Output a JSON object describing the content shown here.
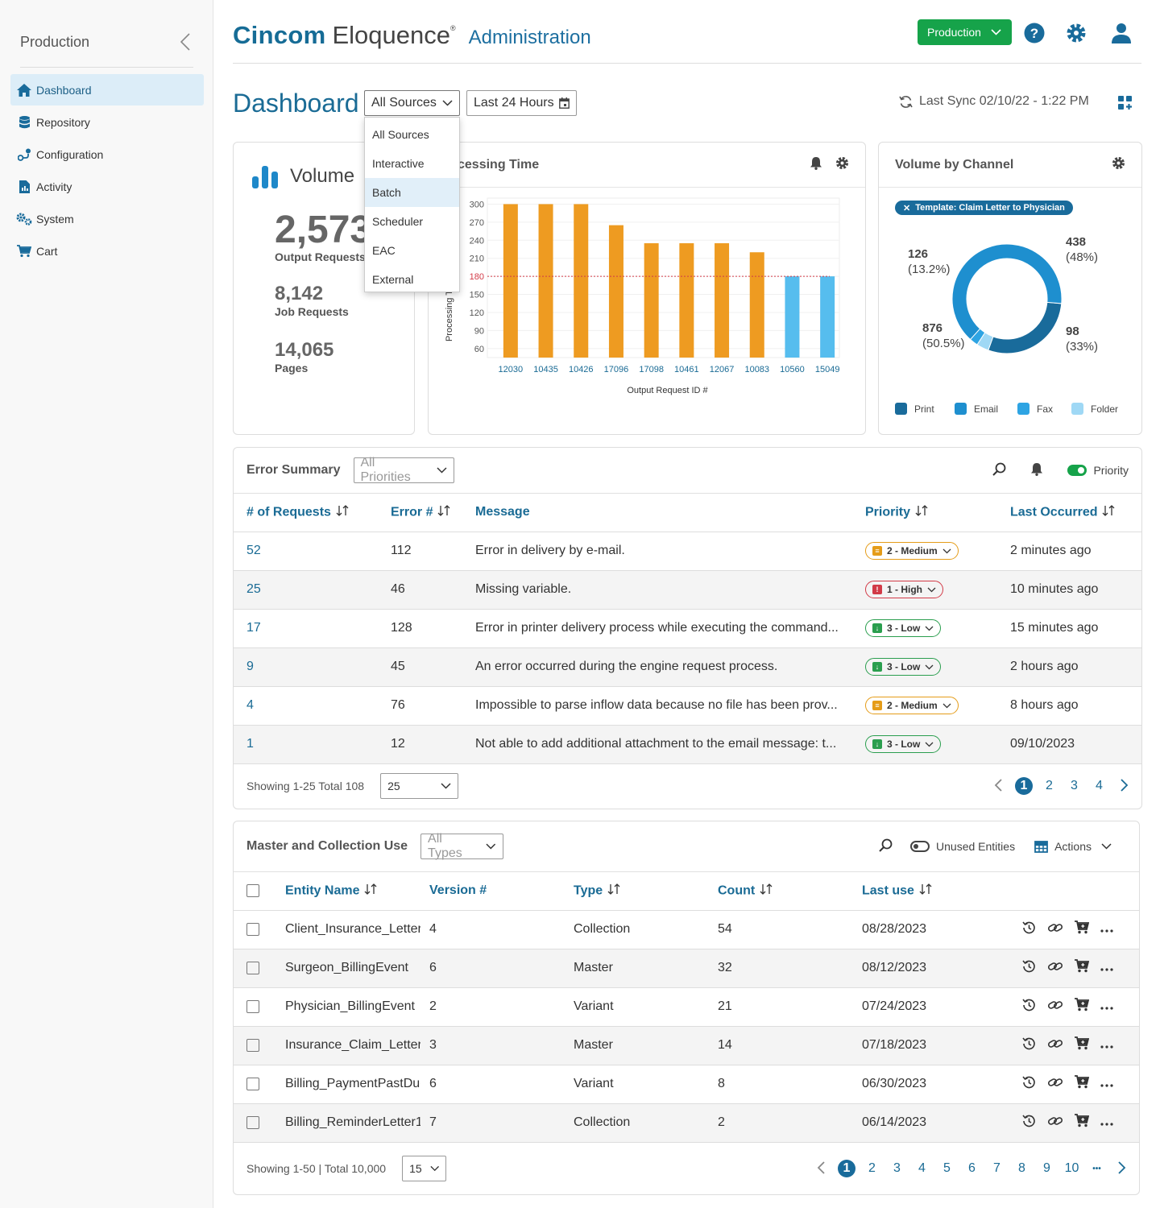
{
  "sidebar": {
    "title": "Production",
    "items": [
      {
        "label": "Dashboard",
        "icon": "home-icon",
        "active": true
      },
      {
        "label": "Repository",
        "icon": "database-icon"
      },
      {
        "label": "Configuration",
        "icon": "workflow-icon"
      },
      {
        "label": "Activity",
        "icon": "document-chart-icon"
      },
      {
        "label": "System",
        "icon": "gears-icon"
      },
      {
        "label": "Cart",
        "icon": "cart-icon"
      }
    ]
  },
  "header": {
    "brand_primary": "Cincom",
    "brand_secondary": "Eloquence",
    "brand_mark": "®",
    "section": "Administration",
    "environment": "Production"
  },
  "dashboard": {
    "title": "Dashboard",
    "source_filter": "All Sources",
    "time_filter": "Last 24 Hours",
    "sync_text": "Last Sync 02/10/22 - 1:22 PM",
    "source_options": [
      "All Sources",
      "Interactive",
      "Batch",
      "Scheduler",
      "EAC",
      "External"
    ],
    "selected_option": "Batch"
  },
  "volume": {
    "title": "Volume",
    "stats": [
      {
        "value": "2,573",
        "label": "Output Requests"
      },
      {
        "value": "8,142",
        "label": "Job Requests"
      },
      {
        "value": "14,065",
        "label": "Pages"
      }
    ]
  },
  "processing": {
    "title_visible": "cessing Time",
    "chart_data": {
      "type": "bar",
      "title": "Processing Time",
      "xlabel": "Output Request ID #",
      "ylabel": "Processing Tin",
      "categories": [
        "12030",
        "10435",
        "10426",
        "17096",
        "17098",
        "10461",
        "12067",
        "10083",
        "10560",
        "15049"
      ],
      "values": [
        300,
        300,
        300,
        265,
        235,
        235,
        235,
        220,
        180,
        180
      ],
      "yticks": [
        60,
        90,
        120,
        150,
        180,
        210,
        240,
        270,
        300
      ],
      "ylim": [
        45,
        310
      ],
      "threshold": 180,
      "color_above": "#ee9b21",
      "color_below": "#56bdee"
    }
  },
  "channel": {
    "title": "Volume by Channel",
    "filter_chip": "Template: Claim Letter to Physician",
    "chart_data": {
      "type": "pie",
      "slices": [
        {
          "name": "Print",
          "value": 876,
          "pct": "(50.5%)",
          "color": "#196b9b"
        },
        {
          "name": "Email",
          "value": 438,
          "pct": "(48%)",
          "color": "#1e8fcf"
        },
        {
          "name": "Fax",
          "value": 126,
          "pct": "(13.2%)",
          "color": "#2ea4e3"
        },
        {
          "name": "Folder",
          "value": 98,
          "pct": "(33%)",
          "color": "#9fd8f5"
        }
      ]
    },
    "labels": {
      "a_value": "126",
      "a_pct": "(13.2%)",
      "b_value": "438",
      "b_pct": "(48%)",
      "c_value": "876",
      "c_pct": "(50.5%)",
      "d_value": "98",
      "d_pct": "(33%)"
    },
    "legend": [
      "Print",
      "Email",
      "Fax",
      "Folder"
    ]
  },
  "errors": {
    "title": "Error Summary",
    "priority_filter": "All Priorities",
    "priority_toggle": "Priority",
    "columns": [
      "# of Requests",
      "Error #",
      "Message",
      "Priority",
      "Last Occurred"
    ],
    "rows": [
      {
        "requests": "52",
        "error": "112",
        "message": "Error in delivery by e-mail.",
        "priority": "2 - Medium",
        "level": "med",
        "when": "2 minutes ago"
      },
      {
        "requests": "25",
        "error": "46",
        "message": "Missing variable.",
        "priority": "1 - High",
        "level": "high",
        "when": "10 minutes ago"
      },
      {
        "requests": "17",
        "error": "128",
        "message": "Error in printer delivery process while executing the command...",
        "priority": "3 - Low",
        "level": "low",
        "when": "15 minutes ago"
      },
      {
        "requests": "9",
        "error": "45",
        "message": "An error occurred during the engine request process.",
        "priority": "3 - Low",
        "level": "low",
        "when": "2 hours ago"
      },
      {
        "requests": "4",
        "error": "76",
        "message": "Impossible to parse inflow data because no file has been prov...",
        "priority": "2 - Medium",
        "level": "med",
        "when": "8 hours ago"
      },
      {
        "requests": "1",
        "error": "12",
        "message": "Not able to add additional attachment to the email message: t...",
        "priority": "3 - Low",
        "level": "low",
        "when": "09/10/2023"
      }
    ],
    "showing": "Showing 1-25 Total 108",
    "page_size": "25",
    "pages": [
      "1",
      "2",
      "3",
      "4"
    ]
  },
  "master": {
    "title": "Master and Collection Use",
    "type_filter": "All Types",
    "unused_toggle": "Unused Entities",
    "actions": "Actions",
    "columns": [
      "Entity Name",
      "Version #",
      "Type",
      "Count",
      "Last use"
    ],
    "rows": [
      {
        "name": "Client_Insurance_Letter",
        "version": "4",
        "type": "Collection",
        "count": "54",
        "last": "08/28/2023"
      },
      {
        "name": "Surgeon_BillingEvent",
        "version": "6",
        "type": "Master",
        "count": "32",
        "last": "08/12/2023"
      },
      {
        "name": "Physician_BillingEvent",
        "version": "2",
        "type": "Variant",
        "count": "21",
        "last": "07/24/2023"
      },
      {
        "name": "Insurance_Claim_Letter",
        "version": "3",
        "type": "Master",
        "count": "14",
        "last": "07/18/2023"
      },
      {
        "name": "Billing_PaymentPastDue",
        "version": "6",
        "type": "Variant",
        "count": "8",
        "last": "06/30/2023"
      },
      {
        "name": "Billing_ReminderLetter1",
        "version": "7",
        "type": "Collection",
        "count": "2",
        "last": "06/14/2023"
      }
    ],
    "showing": "Showing 1-50 | Total 10,000",
    "page_size": "15",
    "pages": [
      "1",
      "2",
      "3",
      "4",
      "5",
      "6",
      "7",
      "8",
      "9",
      "10"
    ],
    "ellipsis": "•••"
  },
  "colors": {
    "brand": "#166c96",
    "accent": "#1a6b95",
    "success": "#16a34a"
  }
}
